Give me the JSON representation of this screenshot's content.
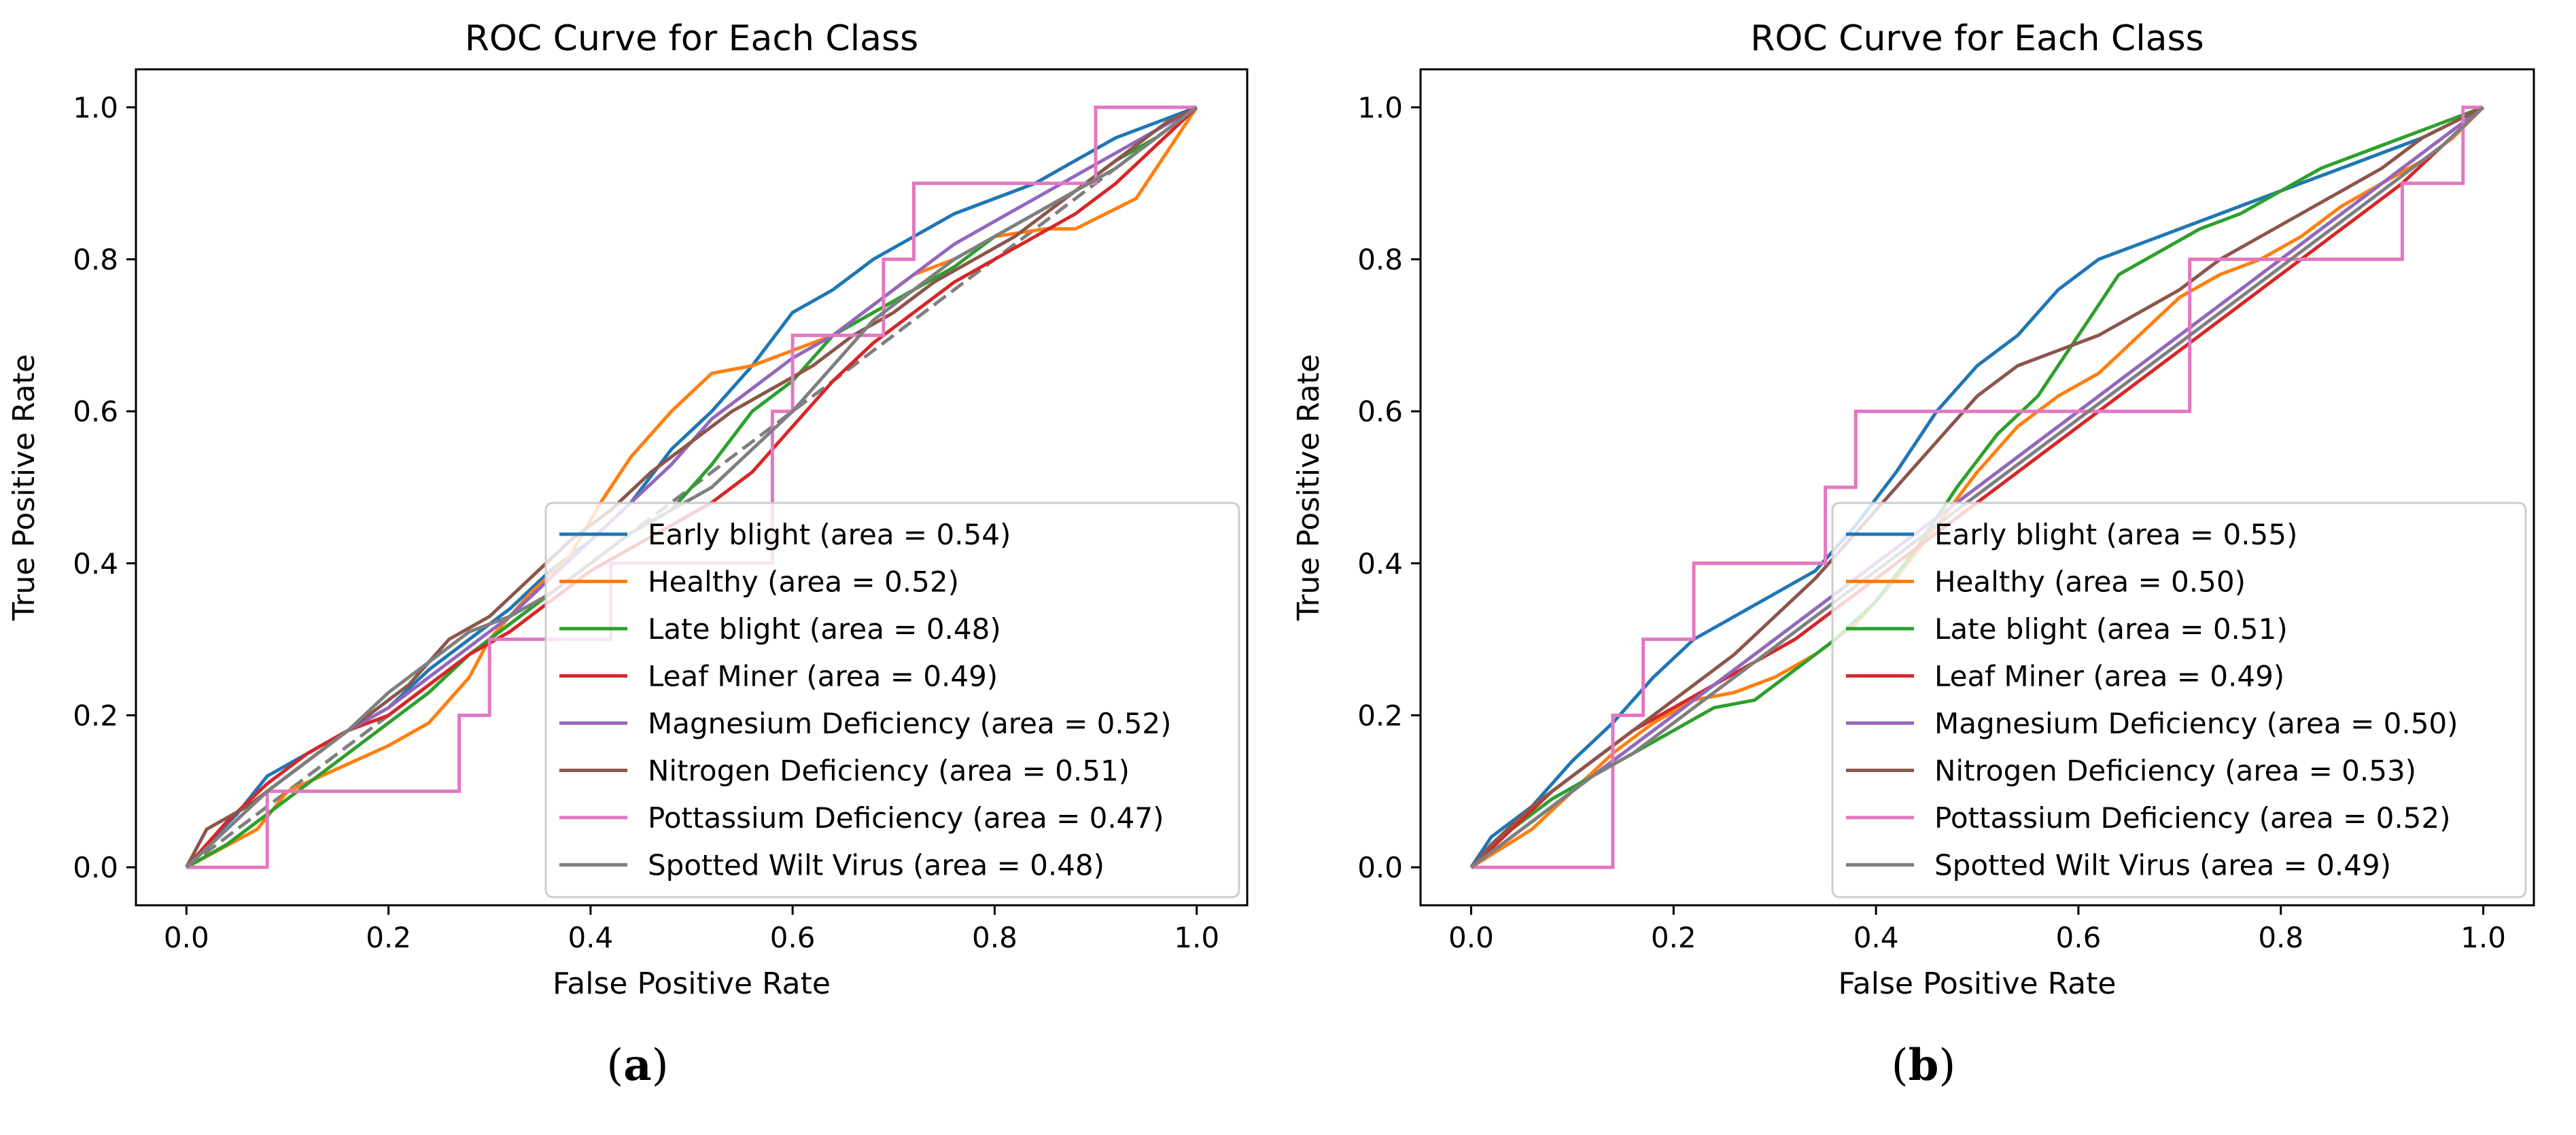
{
  "panel_labels": {
    "a": "a",
    "b": "b"
  },
  "chart_data": [
    {
      "type": "line",
      "panel": "a",
      "title": "ROC Curve for Each Class",
      "xlabel": "False Positive Rate",
      "ylabel": "True Positive Rate",
      "xlim": [
        -0.05,
        1.05
      ],
      "ylim": [
        -0.05,
        1.05
      ],
      "xticks": [
        0.0,
        0.2,
        0.4,
        0.6,
        0.8,
        1.0
      ],
      "yticks": [
        0.0,
        0.2,
        0.4,
        0.6,
        0.8,
        1.0
      ],
      "xtick_labels": [
        "0.0",
        "0.2",
        "0.4",
        "0.6",
        "0.8",
        "1.0"
      ],
      "ytick_labels": [
        "0.0",
        "0.2",
        "0.4",
        "0.6",
        "0.8",
        "1.0"
      ],
      "grid": false,
      "legend_position": "lower-right",
      "diagonal": true,
      "series": [
        {
          "name": "Early blight (area = 0.54)",
          "color": "#1f77b4",
          "x": [
            0,
            0.02,
            0.05,
            0.08,
            0.12,
            0.16,
            0.2,
            0.24,
            0.28,
            0.32,
            0.36,
            0.4,
            0.44,
            0.48,
            0.52,
            0.56,
            0.6,
            0.64,
            0.68,
            0.72,
            0.76,
            0.8,
            0.84,
            0.88,
            0.92,
            0.96,
            1.0
          ],
          "y": [
            0,
            0.03,
            0.07,
            0.12,
            0.15,
            0.18,
            0.21,
            0.26,
            0.3,
            0.34,
            0.39,
            0.43,
            0.48,
            0.55,
            0.6,
            0.66,
            0.73,
            0.76,
            0.8,
            0.83,
            0.86,
            0.88,
            0.9,
            0.93,
            0.96,
            0.98,
            1.0
          ]
        },
        {
          "name": "Healthy (area = 0.52)",
          "color": "#ff7f0e",
          "x": [
            0,
            0.07,
            0.1,
            0.15,
            0.2,
            0.24,
            0.28,
            0.3,
            0.34,
            0.38,
            0.41,
            0.44,
            0.48,
            0.52,
            0.56,
            0.6,
            0.64,
            0.68,
            0.72,
            0.76,
            0.8,
            0.85,
            0.88,
            0.91,
            0.94,
            0.97,
            1.0
          ],
          "y": [
            0,
            0.05,
            0.1,
            0.13,
            0.16,
            0.19,
            0.25,
            0.3,
            0.36,
            0.41,
            0.48,
            0.54,
            0.6,
            0.65,
            0.66,
            0.68,
            0.7,
            0.74,
            0.78,
            0.8,
            0.83,
            0.84,
            0.84,
            0.86,
            0.88,
            0.94,
            1.0
          ]
        },
        {
          "name": "Late blight (area = 0.48)",
          "color": "#2ca02c",
          "x": [
            0,
            0.04,
            0.08,
            0.12,
            0.16,
            0.2,
            0.24,
            0.28,
            0.32,
            0.36,
            0.4,
            0.44,
            0.48,
            0.52,
            0.56,
            0.6,
            0.64,
            0.68,
            0.72,
            0.76,
            0.8,
            0.84,
            0.88,
            0.92,
            0.96,
            1.0
          ],
          "y": [
            0,
            0.03,
            0.07,
            0.11,
            0.15,
            0.19,
            0.23,
            0.28,
            0.32,
            0.36,
            0.4,
            0.44,
            0.47,
            0.53,
            0.6,
            0.64,
            0.7,
            0.73,
            0.76,
            0.79,
            0.83,
            0.86,
            0.89,
            0.93,
            0.96,
            1.0
          ]
        },
        {
          "name": "Leaf Miner (area = 0.49)",
          "color": "#d62728",
          "x": [
            0,
            0.04,
            0.08,
            0.12,
            0.16,
            0.2,
            0.24,
            0.28,
            0.32,
            0.36,
            0.4,
            0.44,
            0.48,
            0.52,
            0.56,
            0.6,
            0.64,
            0.68,
            0.72,
            0.76,
            0.8,
            0.84,
            0.88,
            0.92,
            0.96,
            1.0
          ],
          "y": [
            0,
            0.06,
            0.11,
            0.15,
            0.18,
            0.2,
            0.24,
            0.28,
            0.31,
            0.35,
            0.39,
            0.42,
            0.45,
            0.48,
            0.52,
            0.58,
            0.64,
            0.69,
            0.73,
            0.77,
            0.8,
            0.83,
            0.86,
            0.9,
            0.95,
            1.0
          ]
        },
        {
          "name": "Magnesium Deficiency (area = 0.52)",
          "color": "#9467bd",
          "x": [
            0,
            0.04,
            0.08,
            0.12,
            0.16,
            0.2,
            0.24,
            0.28,
            0.32,
            0.36,
            0.4,
            0.44,
            0.48,
            0.52,
            0.56,
            0.6,
            0.64,
            0.68,
            0.72,
            0.76,
            0.8,
            0.84,
            0.88,
            0.92,
            0.96,
            1.0
          ],
          "y": [
            0,
            0.05,
            0.1,
            0.14,
            0.18,
            0.21,
            0.25,
            0.29,
            0.33,
            0.38,
            0.43,
            0.48,
            0.53,
            0.59,
            0.63,
            0.67,
            0.7,
            0.74,
            0.78,
            0.82,
            0.85,
            0.88,
            0.91,
            0.94,
            0.97,
            1.0
          ]
        },
        {
          "name": "Nitrogen Deficiency (area = 0.51)",
          "color": "#8c564b",
          "x": [
            0,
            0.02,
            0.06,
            0.1,
            0.14,
            0.18,
            0.22,
            0.26,
            0.3,
            0.34,
            0.38,
            0.42,
            0.46,
            0.5,
            0.54,
            0.58,
            0.62,
            0.66,
            0.7,
            0.74,
            0.78,
            0.82,
            0.86,
            0.9,
            0.94,
            0.97,
            1.0
          ],
          "y": [
            0,
            0.05,
            0.08,
            0.12,
            0.16,
            0.2,
            0.24,
            0.3,
            0.33,
            0.38,
            0.43,
            0.47,
            0.52,
            0.56,
            0.6,
            0.63,
            0.66,
            0.7,
            0.73,
            0.77,
            0.8,
            0.83,
            0.87,
            0.91,
            0.95,
            0.98,
            1.0
          ]
        },
        {
          "name": "Pottassium Deficiency (area = 0.47)",
          "color": "#e377c2",
          "x": [
            0,
            0.08,
            0.08,
            0.27,
            0.27,
            0.3,
            0.3,
            0.42,
            0.42,
            0.58,
            0.58,
            0.6,
            0.6,
            0.69,
            0.69,
            0.72,
            0.72,
            0.9,
            0.9,
            1.0
          ],
          "y": [
            0,
            0,
            0.1,
            0.1,
            0.2,
            0.2,
            0.3,
            0.3,
            0.4,
            0.4,
            0.6,
            0.6,
            0.7,
            0.7,
            0.8,
            0.8,
            0.9,
            0.9,
            1.0,
            1.0
          ]
        },
        {
          "name": "Spotted Wilt Virus (area = 0.48)",
          "color": "#7f7f7f",
          "x": [
            0,
            0.04,
            0.08,
            0.12,
            0.16,
            0.2,
            0.24,
            0.28,
            0.32,
            0.36,
            0.4,
            0.44,
            0.48,
            0.52,
            0.56,
            0.6,
            0.64,
            0.68,
            0.72,
            0.76,
            0.8,
            0.84,
            0.88,
            0.92,
            0.96,
            1.0
          ],
          "y": [
            0,
            0.05,
            0.1,
            0.14,
            0.18,
            0.23,
            0.27,
            0.31,
            0.33,
            0.36,
            0.4,
            0.44,
            0.47,
            0.5,
            0.55,
            0.6,
            0.66,
            0.72,
            0.76,
            0.8,
            0.83,
            0.86,
            0.89,
            0.92,
            0.96,
            1.0
          ]
        }
      ]
    },
    {
      "type": "line",
      "panel": "b",
      "title": "ROC Curve for Each Class",
      "xlabel": "False Positive Rate",
      "ylabel": "True Positive Rate",
      "xlim": [
        -0.05,
        1.05
      ],
      "ylim": [
        -0.05,
        1.05
      ],
      "xticks": [
        0.0,
        0.2,
        0.4,
        0.6,
        0.8,
        1.0
      ],
      "yticks": [
        0.0,
        0.2,
        0.4,
        0.6,
        0.8,
        1.0
      ],
      "xtick_labels": [
        "0.0",
        "0.2",
        "0.4",
        "0.6",
        "0.8",
        "1.0"
      ],
      "ytick_labels": [
        "0.0",
        "0.2",
        "0.4",
        "0.6",
        "0.8",
        "1.0"
      ],
      "grid": false,
      "legend_position": "lower-right",
      "diagonal": true,
      "series": [
        {
          "name": "Early blight (area = 0.55)",
          "color": "#1f77b4",
          "x": [
            0,
            0.02,
            0.06,
            0.1,
            0.14,
            0.18,
            0.22,
            0.26,
            0.3,
            0.34,
            0.38,
            0.42,
            0.46,
            0.5,
            0.54,
            0.58,
            0.62,
            0.66,
            0.7,
            0.74,
            0.78,
            0.82,
            0.86,
            0.9,
            0.94,
            0.97,
            1.0
          ],
          "y": [
            0,
            0.04,
            0.08,
            0.14,
            0.19,
            0.25,
            0.3,
            0.33,
            0.36,
            0.39,
            0.45,
            0.52,
            0.6,
            0.66,
            0.7,
            0.76,
            0.8,
            0.82,
            0.84,
            0.86,
            0.88,
            0.9,
            0.92,
            0.94,
            0.96,
            0.98,
            1.0
          ]
        },
        {
          "name": "Healthy (area = 0.50)",
          "color": "#ff7f0e",
          "x": [
            0,
            0.06,
            0.1,
            0.14,
            0.18,
            0.22,
            0.26,
            0.3,
            0.34,
            0.38,
            0.42,
            0.46,
            0.5,
            0.54,
            0.58,
            0.62,
            0.66,
            0.7,
            0.74,
            0.78,
            0.82,
            0.86,
            0.9,
            0.94,
            0.97,
            1.0
          ],
          "y": [
            0,
            0.05,
            0.1,
            0.15,
            0.19,
            0.22,
            0.23,
            0.25,
            0.28,
            0.32,
            0.38,
            0.45,
            0.52,
            0.58,
            0.62,
            0.65,
            0.7,
            0.75,
            0.78,
            0.8,
            0.83,
            0.87,
            0.9,
            0.93,
            0.96,
            1.0
          ]
        },
        {
          "name": "Late blight (area = 0.51)",
          "color": "#2ca02c",
          "x": [
            0,
            0.04,
            0.08,
            0.12,
            0.16,
            0.2,
            0.24,
            0.28,
            0.32,
            0.36,
            0.4,
            0.44,
            0.48,
            0.52,
            0.56,
            0.6,
            0.64,
            0.68,
            0.72,
            0.76,
            0.8,
            0.84,
            0.88,
            0.92,
            0.96,
            1.0
          ],
          "y": [
            0,
            0.05,
            0.09,
            0.12,
            0.15,
            0.18,
            0.21,
            0.22,
            0.26,
            0.3,
            0.35,
            0.42,
            0.5,
            0.57,
            0.62,
            0.7,
            0.78,
            0.81,
            0.84,
            0.86,
            0.89,
            0.92,
            0.94,
            0.96,
            0.98,
            1.0
          ]
        },
        {
          "name": "Leaf Miner (area = 0.49)",
          "color": "#d62728",
          "x": [
            0,
            0.04,
            0.08,
            0.12,
            0.16,
            0.2,
            0.24,
            0.28,
            0.32,
            0.36,
            0.4,
            0.44,
            0.48,
            0.52,
            0.56,
            0.6,
            0.64,
            0.68,
            0.72,
            0.76,
            0.8,
            0.84,
            0.88,
            0.92,
            0.96,
            1.0
          ],
          "y": [
            0,
            0.05,
            0.1,
            0.14,
            0.18,
            0.21,
            0.24,
            0.27,
            0.3,
            0.34,
            0.38,
            0.42,
            0.46,
            0.5,
            0.54,
            0.58,
            0.62,
            0.66,
            0.7,
            0.74,
            0.78,
            0.82,
            0.86,
            0.9,
            0.95,
            1.0
          ]
        },
        {
          "name": "Magnesium Deficiency (area = 0.50)",
          "color": "#9467bd",
          "x": [
            0,
            0.04,
            0.08,
            0.12,
            0.16,
            0.2,
            0.24,
            0.28,
            0.32,
            0.36,
            0.4,
            0.44,
            0.48,
            0.52,
            0.56,
            0.6,
            0.64,
            0.68,
            0.72,
            0.76,
            0.8,
            0.84,
            0.88,
            0.92,
            0.96,
            1.0
          ],
          "y": [
            0,
            0.04,
            0.08,
            0.12,
            0.16,
            0.2,
            0.24,
            0.28,
            0.32,
            0.36,
            0.4,
            0.44,
            0.48,
            0.52,
            0.56,
            0.6,
            0.64,
            0.68,
            0.72,
            0.76,
            0.8,
            0.84,
            0.88,
            0.92,
            0.96,
            1.0
          ]
        },
        {
          "name": "Nitrogen Deficiency (area = 0.53)",
          "color": "#8c564b",
          "x": [
            0,
            0.02,
            0.06,
            0.1,
            0.14,
            0.18,
            0.22,
            0.26,
            0.3,
            0.34,
            0.38,
            0.42,
            0.46,
            0.5,
            0.54,
            0.58,
            0.62,
            0.66,
            0.7,
            0.74,
            0.78,
            0.82,
            0.86,
            0.9,
            0.94,
            0.97,
            1.0
          ],
          "y": [
            0,
            0.03,
            0.08,
            0.12,
            0.16,
            0.2,
            0.24,
            0.28,
            0.33,
            0.38,
            0.44,
            0.5,
            0.56,
            0.62,
            0.66,
            0.68,
            0.7,
            0.73,
            0.76,
            0.8,
            0.83,
            0.86,
            0.89,
            0.92,
            0.96,
            0.98,
            1.0
          ]
        },
        {
          "name": "Pottassium Deficiency (area = 0.52)",
          "color": "#e377c2",
          "x": [
            0,
            0.14,
            0.14,
            0.17,
            0.17,
            0.22,
            0.22,
            0.35,
            0.35,
            0.38,
            0.38,
            0.44,
            0.44,
            0.71,
            0.71,
            0.76,
            0.76,
            0.92,
            0.92,
            0.98,
            0.98,
            1.0
          ],
          "y": [
            0,
            0,
            0.2,
            0.2,
            0.3,
            0.3,
            0.4,
            0.4,
            0.5,
            0.5,
            0.6,
            0.6,
            0.6,
            0.6,
            0.8,
            0.8,
            0.8,
            0.8,
            0.9,
            0.9,
            1.0,
            1.0
          ]
        },
        {
          "name": "Spotted Wilt Virus (area = 0.49)",
          "color": "#7f7f7f",
          "x": [
            0,
            0.04,
            0.08,
            0.12,
            0.16,
            0.2,
            0.24,
            0.28,
            0.32,
            0.36,
            0.4,
            0.44,
            0.48,
            0.52,
            0.56,
            0.6,
            0.64,
            0.68,
            0.72,
            0.76,
            0.8,
            0.84,
            0.88,
            0.92,
            0.96,
            1.0
          ],
          "y": [
            0,
            0.04,
            0.08,
            0.12,
            0.15,
            0.19,
            0.23,
            0.27,
            0.31,
            0.35,
            0.39,
            0.43,
            0.47,
            0.51,
            0.55,
            0.59,
            0.63,
            0.67,
            0.71,
            0.75,
            0.79,
            0.83,
            0.87,
            0.91,
            0.95,
            1.0
          ]
        }
      ]
    }
  ]
}
